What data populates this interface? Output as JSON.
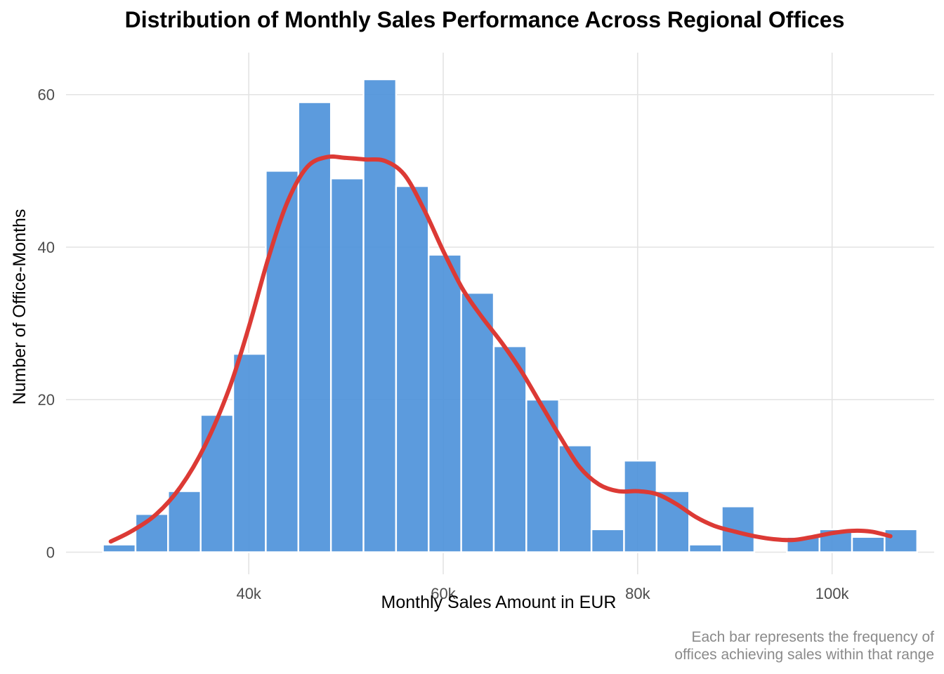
{
  "chart_data": {
    "type": "bar",
    "title": "Distribution of Monthly Sales Performance Across Regional Offices",
    "xlabel": "Monthly Sales Amount in EUR",
    "ylabel": "Number of Office-Months",
    "caption": [
      "Each bar represents the frequency of",
      "offices achieving sales within that range"
    ],
    "xlim": [
      21200,
      110500
    ],
    "ylim": [
      -2.9,
      65.5
    ],
    "x_ticks": [
      {
        "value": 40000,
        "label": "40k"
      },
      {
        "value": 60000,
        "label": "60k"
      },
      {
        "value": 80000,
        "label": "80k"
      },
      {
        "value": 100000,
        "label": "100k"
      }
    ],
    "y_ticks": [
      {
        "value": 0,
        "label": "0"
      },
      {
        "value": 20,
        "label": "20"
      },
      {
        "value": 40,
        "label": "40"
      },
      {
        "value": 60,
        "label": "60"
      }
    ],
    "bin_width": 3350,
    "bin_starts": [
      25000,
      28350,
      31700,
      35050,
      38400,
      41750,
      45100,
      48450,
      51800,
      55150,
      58500,
      61850,
      65200,
      68550,
      71900,
      75250,
      78600,
      81950,
      85300,
      88650,
      92000,
      95350,
      98700,
      102050,
      105400
    ],
    "counts": [
      1,
      5,
      8,
      18,
      26,
      50,
      59,
      49,
      62,
      48,
      39,
      34,
      27,
      20,
      14,
      3,
      12,
      8,
      1,
      6,
      0,
      2,
      3,
      2,
      3
    ],
    "density_curve": {
      "color": "#dc3a35",
      "x": [
        25800,
        28000,
        30500,
        33000,
        35500,
        38000,
        40000,
        42000,
        44000,
        46000,
        48000,
        50000,
        52000,
        54000,
        56000,
        58000,
        60000,
        62000,
        64000,
        66000,
        68000,
        70000,
        72000,
        74000,
        76000,
        78000,
        80000,
        82000,
        84000,
        86000,
        88000,
        90000,
        92000,
        94000,
        96000,
        98000,
        100000,
        102000,
        104000,
        106000
      ],
      "y": [
        1.4,
        2.8,
        5.0,
        8.6,
        14.0,
        21.5,
        29.5,
        38.5,
        46.0,
        50.5,
        51.8,
        51.7,
        51.5,
        51.3,
        49.5,
        45.0,
        39.5,
        34.5,
        30.8,
        27.5,
        23.8,
        19.5,
        15.2,
        11.2,
        8.9,
        8.0,
        8.0,
        7.6,
        6.3,
        4.6,
        3.4,
        2.7,
        2.1,
        1.7,
        1.6,
        2.0,
        2.5,
        2.8,
        2.7,
        2.1
      ]
    },
    "bar_color": "#4a90d9",
    "grid": true,
    "legend": "none"
  }
}
